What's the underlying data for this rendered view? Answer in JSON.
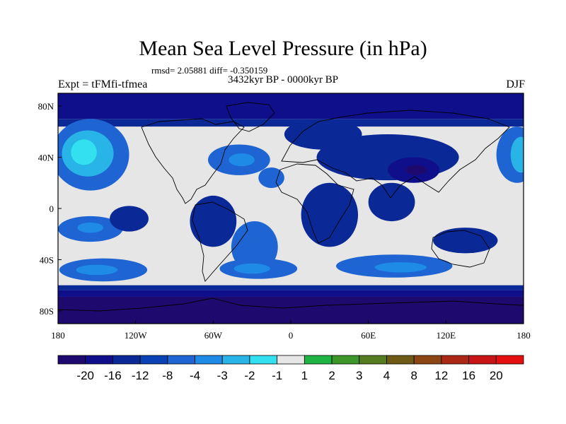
{
  "chart_data": {
    "type": "heatmap",
    "title": "Mean Sea Level Pressure (in hPa)",
    "stats_text": "rmsd= 2.05881 diff= -0.350159",
    "subtitle": "3432kyr BP - 0000kyr BP",
    "left_label": "Expt = tFMfi-tfmea",
    "right_label": "DJF",
    "lon_range": [
      -180,
      180
    ],
    "lat_range": [
      -90,
      90
    ],
    "x_ticks": [
      {
        "value": -180,
        "label": "180"
      },
      {
        "value": -120,
        "label": "120W"
      },
      {
        "value": -60,
        "label": "60W"
      },
      {
        "value": 0,
        "label": "0"
      },
      {
        "value": 60,
        "label": "60E"
      },
      {
        "value": 120,
        "label": "120E"
      },
      {
        "value": 180,
        "label": "180"
      }
    ],
    "y_ticks": [
      {
        "value": 80,
        "label": "80N"
      },
      {
        "value": 40,
        "label": "40N"
      },
      {
        "value": 0,
        "label": "0"
      },
      {
        "value": -40,
        "label": "40S"
      },
      {
        "value": -80,
        "label": "80S"
      }
    ],
    "colorbar": {
      "colors": [
        "#1e0a6e",
        "#0f0f8c",
        "#0a2896",
        "#0a41b4",
        "#1e64d2",
        "#1e8ce6",
        "#28b4e6",
        "#32e0f0",
        "#e6e6e6",
        "#1eb441",
        "#3c9628",
        "#557d1e",
        "#6e5a14",
        "#8c4614",
        "#aa2814",
        "#c81414",
        "#e60f0f"
      ],
      "tick_labels": [
        "-20",
        "-16",
        "-12",
        "-8",
        "-4",
        "-3",
        "-2",
        "-1",
        "1",
        "2",
        "3",
        "4",
        "8",
        "12",
        "16",
        "20"
      ]
    },
    "regions": [
      {
        "name": "north-pacific-high",
        "lon": -155,
        "lat": 42,
        "rlon": 30,
        "rlat": 28,
        "level": 4
      },
      {
        "name": "north-pacific-core",
        "lon": -157,
        "lat": 43,
        "rlon": 20,
        "rlat": 18,
        "level": 6
      },
      {
        "name": "north-pacific-inner",
        "lon": -160,
        "lat": 44,
        "rlon": 10,
        "rlat": 10,
        "level": 7
      },
      {
        "name": "dateline-high-east",
        "lon": 175,
        "lat": 42,
        "rlon": 16,
        "rlat": 22,
        "level": 4
      },
      {
        "name": "dateline-high-east-core",
        "lon": 178,
        "lat": 42,
        "rlon": 8,
        "rlat": 14,
        "level": 6
      },
      {
        "name": "north-atlantic-high",
        "lon": -40,
        "lat": 38,
        "rlon": 24,
        "rlat": 12,
        "level": 4
      },
      {
        "name": "north-atlantic-core",
        "lon": -38,
        "lat": 38,
        "rlon": 10,
        "rlat": 5,
        "level": 5
      },
      {
        "name": "africa-high",
        "lon": -15,
        "lat": 24,
        "rlon": 10,
        "rlat": 8,
        "level": 4
      },
      {
        "name": "south-pacific-band",
        "lon": -155,
        "lat": -16,
        "rlon": 25,
        "rlat": 10,
        "level": 4
      },
      {
        "name": "south-pacific-core",
        "lon": -155,
        "lat": -15,
        "rlon": 10,
        "rlat": 4,
        "level": 5
      },
      {
        "name": "south-atlantic-arm",
        "lon": -28,
        "lat": -30,
        "rlon": 18,
        "rlat": 20,
        "level": 4
      },
      {
        "name": "southern-belt-pacific",
        "lon": -145,
        "lat": -48,
        "rlon": 34,
        "rlat": 9,
        "level": 4
      },
      {
        "name": "southern-belt-pacific-core",
        "lon": -150,
        "lat": -48,
        "rlon": 16,
        "rlat": 4,
        "level": 5
      },
      {
        "name": "southern-belt-atlantic",
        "lon": -25,
        "lat": -47,
        "rlon": 30,
        "rlat": 8,
        "level": 4
      },
      {
        "name": "southern-belt-atlantic-core",
        "lon": -30,
        "lat": -47,
        "rlon": 14,
        "rlat": 4,
        "level": 5
      },
      {
        "name": "southern-belt-indian",
        "lon": 80,
        "lat": -45,
        "rlon": 45,
        "rlat": 9,
        "level": 4
      },
      {
        "name": "southern-belt-indian-core",
        "lon": 85,
        "lat": -46,
        "rlon": 20,
        "rlat": 4,
        "level": 5
      },
      {
        "name": "asia-low",
        "lon": 75,
        "lat": 40,
        "rlon": 55,
        "rlat": 18,
        "level": 2
      },
      {
        "name": "eurasia-low-west",
        "lon": 25,
        "lat": 58,
        "rlon": 30,
        "rlat": 12,
        "level": 2
      },
      {
        "name": "tibet-low",
        "lon": 95,
        "lat": 30,
        "rlon": 20,
        "rlat": 10,
        "level": 1
      },
      {
        "name": "tibet-core",
        "lon": 97,
        "lat": 30,
        "rlon": 8,
        "rlat": 4,
        "level": 0
      },
      {
        "name": "africa-low",
        "lon": 30,
        "lat": -5,
        "rlon": 22,
        "rlat": 25,
        "level": 2
      },
      {
        "name": "india-low",
        "lon": 78,
        "lat": 5,
        "rlon": 18,
        "rlat": 15,
        "level": 2
      },
      {
        "name": "south-america-low",
        "lon": -60,
        "lat": -10,
        "rlon": 18,
        "rlat": 20,
        "level": 2
      },
      {
        "name": "australia-low",
        "lon": 135,
        "lat": -25,
        "rlon": 25,
        "rlat": 10,
        "level": 2
      },
      {
        "name": "east-pacific-low",
        "lon": -125,
        "lat": -8,
        "rlon": 15,
        "rlat": 10,
        "level": 2
      }
    ],
    "zonal_bands": [
      {
        "lat_from": 90,
        "lat_to": 70,
        "level": 1
      },
      {
        "lat_from": 70,
        "lat_to": 64,
        "level": 2
      },
      {
        "lat_from": -60,
        "lat_to": -64,
        "level": 2
      },
      {
        "lat_from": -64,
        "lat_to": -69,
        "level": 1
      },
      {
        "lat_from": -69,
        "lat_to": -90,
        "level": 0
      }
    ]
  }
}
